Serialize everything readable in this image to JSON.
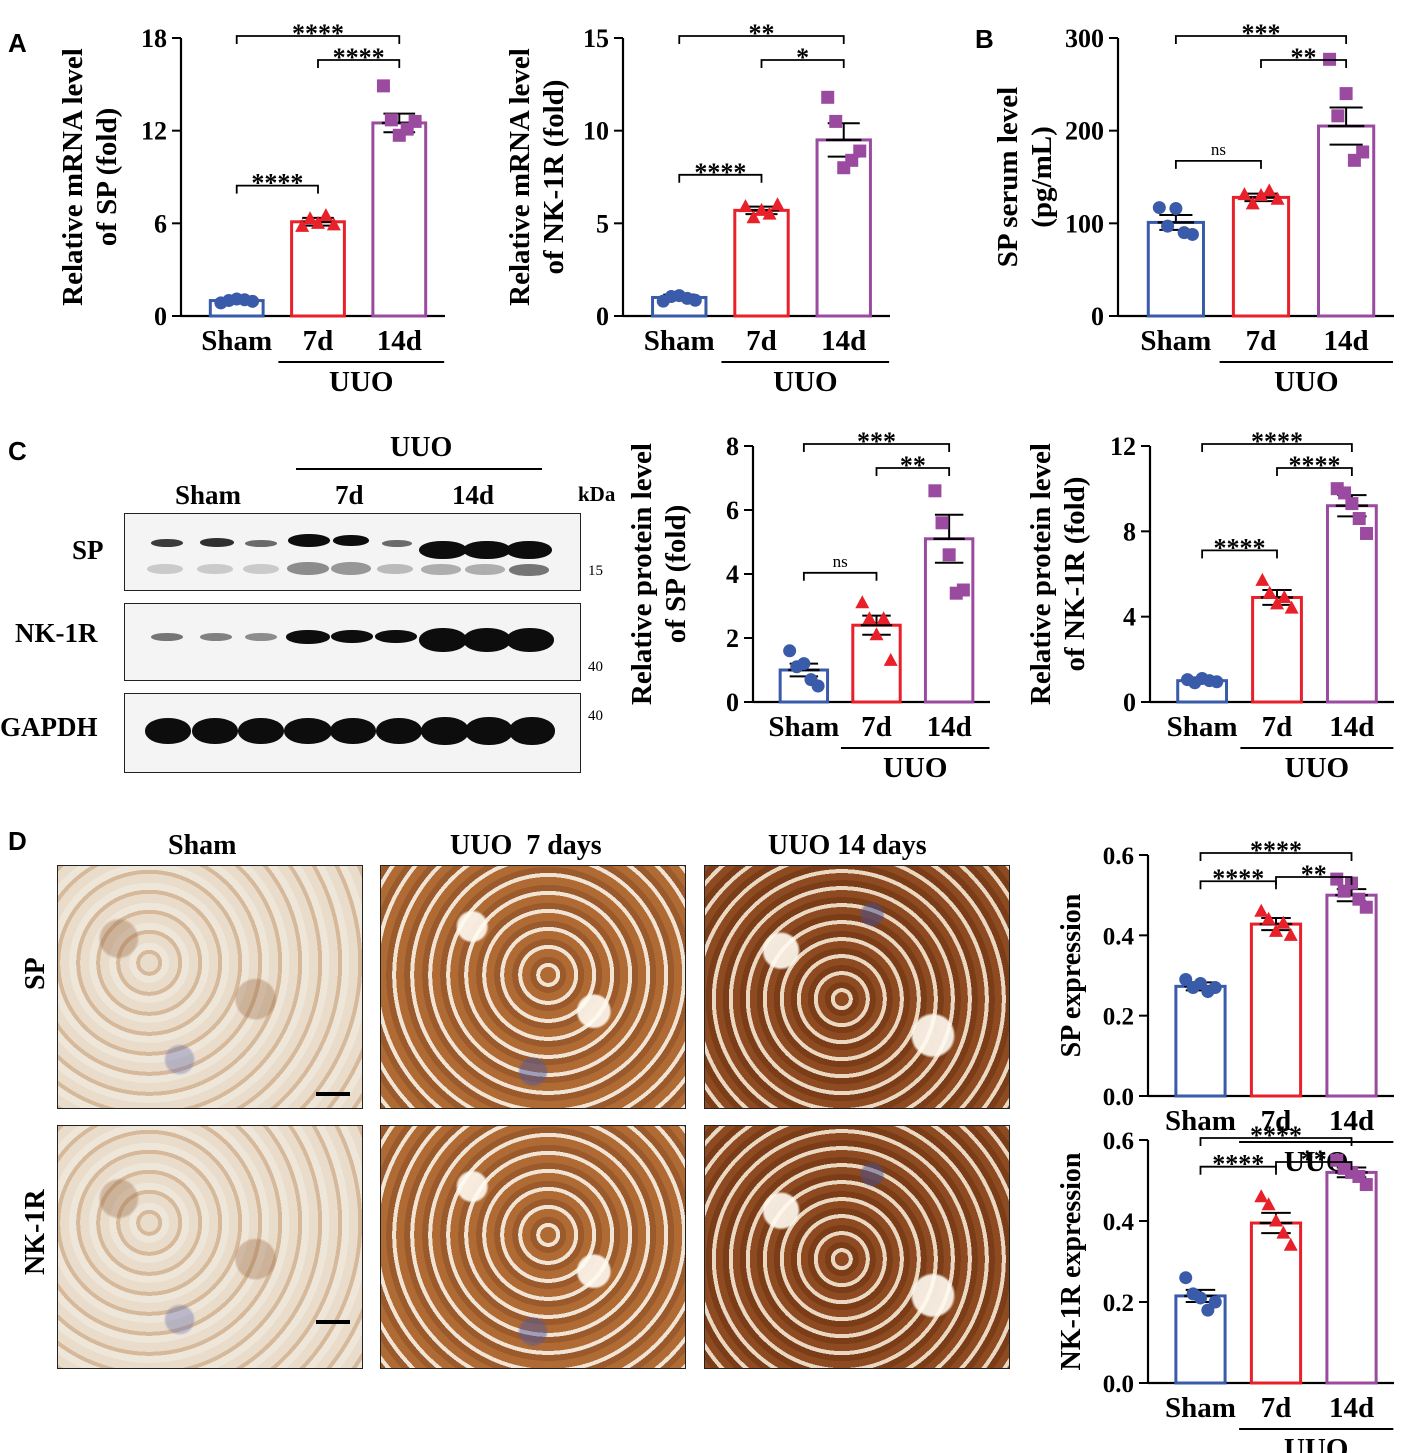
{
  "panel_letters": {
    "A": "A",
    "B": "B",
    "C": "C",
    "D": "D"
  },
  "colors": {
    "sham": "#3a5ba9",
    "d7": "#e8202a",
    "d14": "#9a4ba0"
  },
  "x_categories": [
    "Sham",
    "7d",
    "14d"
  ],
  "group_label": "UUO",
  "blot": {
    "header_group": "UUO",
    "col_sham": "Sham",
    "col_7d": "7d",
    "col_14d": "14d",
    "kda": "kDa",
    "rows": [
      "SP",
      "NK-1R",
      "GAPDH"
    ],
    "markers": {
      "m15": "15",
      "m40a": "40",
      "m40b": "40"
    }
  },
  "ihc": {
    "col_sham": "Sham",
    "col_7d": "UUO  7 days",
    "col_14d": "UUO 14 days",
    "row_sp": "SP",
    "row_nk1r": "NK-1R"
  },
  "chart_data": [
    {
      "id": "mrna_sp",
      "type": "bar",
      "ylabel": [
        "Relative mRNA level",
        "of SP (fold)"
      ],
      "ylim": [
        0,
        18
      ],
      "yticks": [
        "0",
        "6",
        "12",
        "18"
      ],
      "categories": [
        "Sham",
        "7d",
        "14d"
      ],
      "means": [
        1.0,
        6.1,
        12.5
      ],
      "errors": [
        0.15,
        0.25,
        0.6
      ],
      "points": [
        [
          0.85,
          1.0,
          1.1,
          1.05,
          0.95
        ],
        [
          5.8,
          6.3,
          6.0,
          6.5,
          5.9
        ],
        [
          14.9,
          12.7,
          11.7,
          12.1,
          12.6
        ]
      ],
      "comparisons": [
        {
          "pair": [
            0,
            2
          ],
          "label": "****"
        },
        {
          "pair": [
            1,
            2
          ],
          "label": "****"
        },
        {
          "pair": [
            0,
            1
          ],
          "label": "****"
        }
      ]
    },
    {
      "id": "mrna_nk1r",
      "type": "bar",
      "ylabel": [
        "Relative mRNA level",
        "of NK-1R (fold)"
      ],
      "ylim": [
        0,
        15
      ],
      "yticks": [
        "0",
        "5",
        "10",
        "15"
      ],
      "categories": [
        "Sham",
        "7d",
        "14d"
      ],
      "means": [
        1.0,
        5.7,
        9.5
      ],
      "errors": [
        0.15,
        0.2,
        0.9
      ],
      "points": [
        [
          0.8,
          1.05,
          1.1,
          0.95,
          0.85
        ],
        [
          5.9,
          5.3,
          5.7,
          5.5,
          6.0
        ],
        [
          11.8,
          10.5,
          8.0,
          8.4,
          8.9
        ]
      ],
      "comparisons": [
        {
          "pair": [
            0,
            2
          ],
          "label": "**"
        },
        {
          "pair": [
            1,
            2
          ],
          "label": "*"
        },
        {
          "pair": [
            0,
            1
          ],
          "label": "****"
        }
      ]
    },
    {
      "id": "serum_sp",
      "type": "bar",
      "ylabel": [
        "SP serum level",
        "(pg/mL)"
      ],
      "ylim": [
        0,
        300
      ],
      "yticks": [
        "0",
        "100",
        "200",
        "300"
      ],
      "categories": [
        "Sham",
        "7d",
        "14d"
      ],
      "means": [
        101,
        128,
        205
      ],
      "errors": [
        8,
        4,
        20
      ],
      "points": [
        [
          117,
          97,
          116,
          90,
          88
        ],
        [
          131,
          121,
          130,
          135,
          126
        ],
        [
          277,
          216,
          240,
          168,
          177
        ]
      ],
      "comparisons": [
        {
          "pair": [
            0,
            2
          ],
          "label": "***"
        },
        {
          "pair": [
            1,
            2
          ],
          "label": "**"
        },
        {
          "pair": [
            0,
            1
          ],
          "label": "ns"
        }
      ]
    },
    {
      "id": "protein_sp",
      "type": "bar",
      "ylabel": [
        "Relative protein level",
        "of SP (fold)"
      ],
      "ylim": [
        0,
        8
      ],
      "yticks": [
        "0",
        "2",
        "4",
        "6",
        "8"
      ],
      "categories": [
        "Sham",
        "7d",
        "14d"
      ],
      "means": [
        1.0,
        2.4,
        5.1
      ],
      "errors": [
        0.2,
        0.3,
        0.75
      ],
      "points": [
        [
          1.6,
          1.1,
          1.2,
          0.7,
          0.5
        ],
        [
          3.1,
          2.6,
          2.1,
          2.6,
          1.3
        ],
        [
          6.6,
          5.6,
          4.6,
          3.4,
          3.5
        ]
      ],
      "comparisons": [
        {
          "pair": [
            0,
            2
          ],
          "label": "***"
        },
        {
          "pair": [
            1,
            2
          ],
          "label": "**"
        },
        {
          "pair": [
            0,
            1
          ],
          "label": "ns"
        }
      ]
    },
    {
      "id": "protein_nk1r",
      "type": "bar",
      "ylabel": [
        "Relative protein level",
        "of NK-1R (fold)"
      ],
      "ylim": [
        0,
        12
      ],
      "yticks": [
        "0",
        "4",
        "8",
        "12"
      ],
      "categories": [
        "Sham",
        "7d",
        "14d"
      ],
      "means": [
        1.0,
        4.9,
        9.2
      ],
      "errors": [
        0.08,
        0.35,
        0.5
      ],
      "points": [
        [
          1.05,
          0.9,
          1.1,
          1.0,
          0.95
        ],
        [
          5.7,
          5.1,
          4.6,
          4.9,
          4.4
        ],
        [
          10.0,
          9.8,
          9.3,
          8.6,
          7.9
        ]
      ],
      "comparisons": [
        {
          "pair": [
            0,
            2
          ],
          "label": "****"
        },
        {
          "pair": [
            1,
            2
          ],
          "label": "****"
        },
        {
          "pair": [
            0,
            1
          ],
          "label": "****"
        }
      ]
    },
    {
      "id": "ihc_sp",
      "type": "bar",
      "ylabel": [
        "SP expression"
      ],
      "ylim": [
        0,
        0.6
      ],
      "yticks": [
        "0.0",
        "0.2",
        "0.4",
        "0.6"
      ],
      "categories": [
        "Sham",
        "7d",
        "14d"
      ],
      "means": [
        0.273,
        0.428,
        0.5
      ],
      "errors": [
        0.01,
        0.015,
        0.015
      ],
      "points": [
        [
          0.29,
          0.27,
          0.28,
          0.26,
          0.27
        ],
        [
          0.46,
          0.44,
          0.41,
          0.43,
          0.4
        ],
        [
          0.54,
          0.51,
          0.53,
          0.49,
          0.47
        ]
      ],
      "comparisons": [
        {
          "pair": [
            0,
            2
          ],
          "label": "****"
        },
        {
          "pair": [
            1,
            2
          ],
          "label": "**"
        },
        {
          "pair": [
            0,
            1
          ],
          "label": "****"
        }
      ]
    },
    {
      "id": "ihc_nk1r",
      "type": "bar",
      "ylabel": [
        "NK-1R expression"
      ],
      "ylim": [
        0,
        0.6
      ],
      "yticks": [
        "0.0",
        "0.2",
        "0.4",
        "0.6"
      ],
      "categories": [
        "Sham",
        "7d",
        "14d"
      ],
      "means": [
        0.215,
        0.395,
        0.52
      ],
      "errors": [
        0.015,
        0.025,
        0.012
      ],
      "points": [
        [
          0.26,
          0.22,
          0.21,
          0.18,
          0.2
        ],
        [
          0.46,
          0.44,
          0.4,
          0.37,
          0.34
        ],
        [
          0.55,
          0.53,
          0.52,
          0.51,
          0.49
        ]
      ],
      "comparisons": [
        {
          "pair": [
            0,
            2
          ],
          "label": "****"
        },
        {
          "pair": [
            1,
            2
          ],
          "label": "**"
        },
        {
          "pair": [
            0,
            1
          ],
          "label": "****"
        }
      ]
    }
  ]
}
